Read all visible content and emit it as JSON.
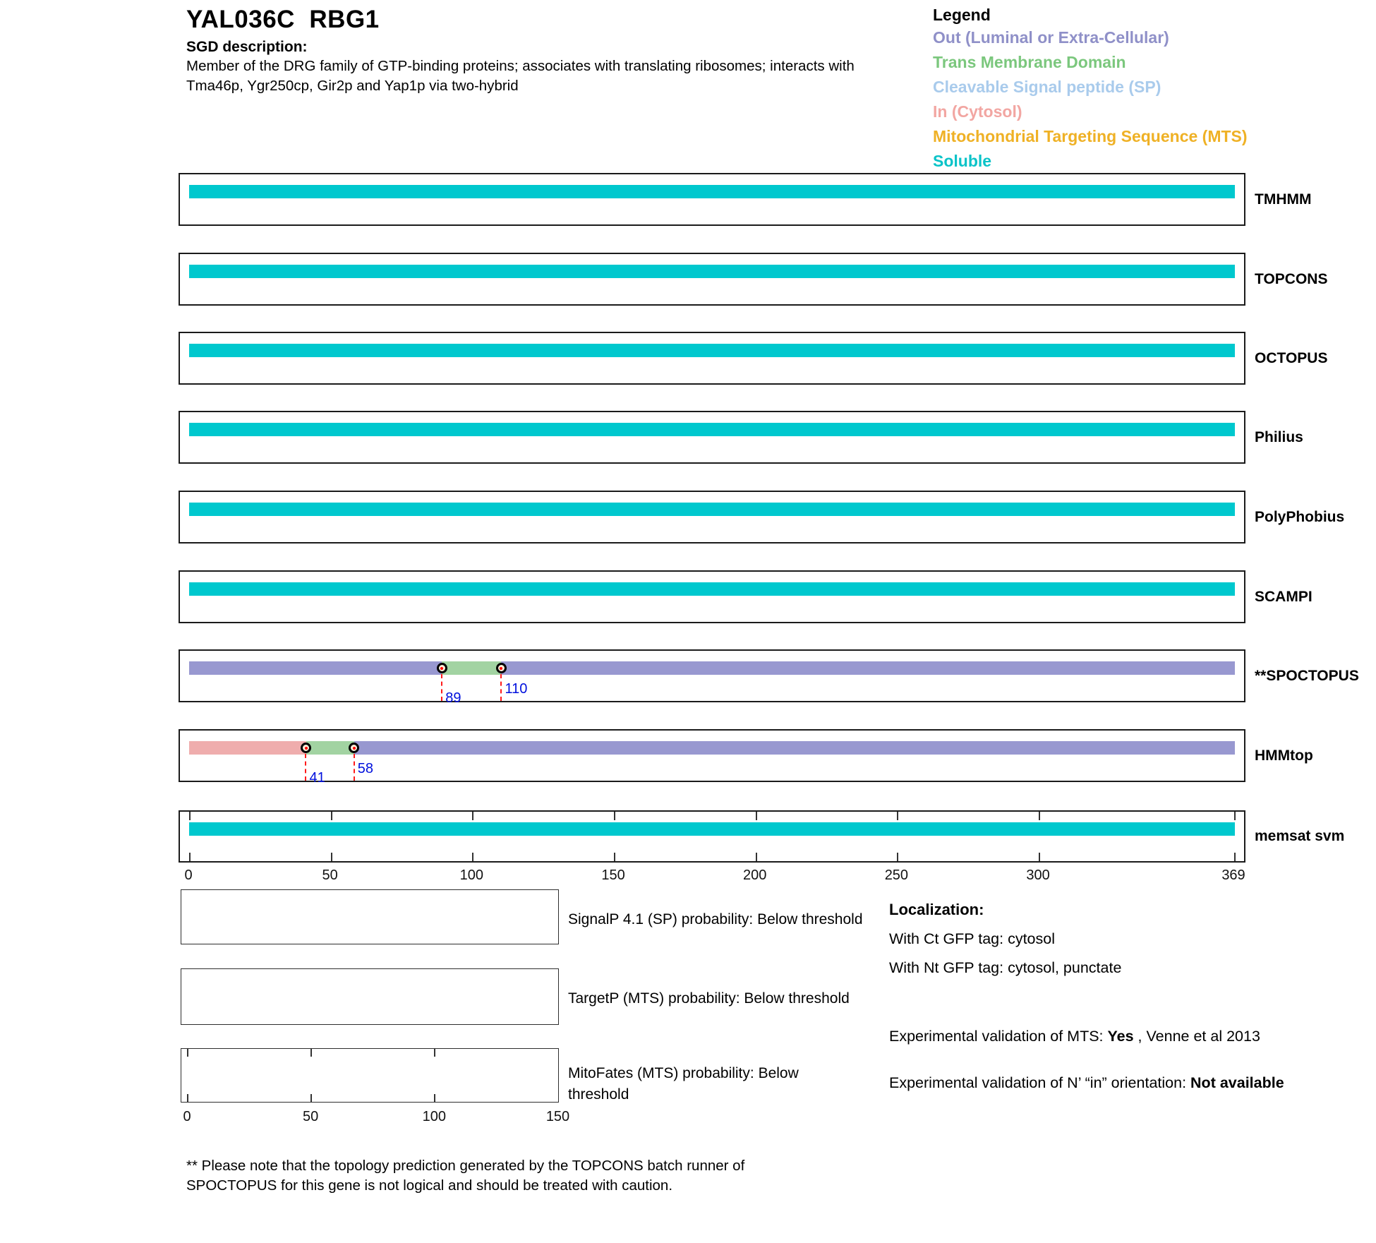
{
  "page": {
    "title": "YAL036C  RBG1",
    "sgd_heading": "SGD description:",
    "sgd_description_line1": "Member of the DRG family of GTP-binding proteins; associates with translating ribosomes; interacts with",
    "sgd_description_line2": "Tma46p, Ygr250cp, Gir2p and Yap1p via two-hybrid"
  },
  "legend": {
    "title": "Legend",
    "items": [
      {
        "label": "Out (Luminal or Extra-Cellular)",
        "color": "#8F90C8"
      },
      {
        "label": "Trans Membrane Domain",
        "color": "#7BC77D"
      },
      {
        "label": "Cleavable Signal peptide (SP)",
        "color": "#A9CBEC"
      },
      {
        "label": "In (Cytosol)",
        "color": "#F2A6A2"
      },
      {
        "label": "Mitochondrial Targeting Sequence (MTS)",
        "color": "#EFB125"
      },
      {
        "label": "Soluble",
        "color": "#0AC3C8"
      }
    ]
  },
  "chart_data": {
    "type": "protein-topology-tracks",
    "sequence_length": 369,
    "axis_ticks": [
      0,
      50,
      100,
      150,
      200,
      250,
      300,
      369
    ],
    "colors": {
      "soluble": "#00C8CE",
      "out": "#9898D0",
      "tm": "#A2D3A2",
      "in": "#EFADAD"
    },
    "tracks": [
      {
        "label": "TMHMM",
        "segments": [
          {
            "type": "soluble",
            "start": 0,
            "end": 369
          }
        ],
        "markers": []
      },
      {
        "label": "TOPCONS",
        "segments": [
          {
            "type": "soluble",
            "start": 0,
            "end": 369
          }
        ],
        "markers": []
      },
      {
        "label": "OCTOPUS",
        "segments": [
          {
            "type": "soluble",
            "start": 0,
            "end": 369
          }
        ],
        "markers": []
      },
      {
        "label": "Philius",
        "segments": [
          {
            "type": "soluble",
            "start": 0,
            "end": 369
          }
        ],
        "markers": []
      },
      {
        "label": "PolyPhobius",
        "segments": [
          {
            "type": "soluble",
            "start": 0,
            "end": 369
          }
        ],
        "markers": []
      },
      {
        "label": "SCAMPI",
        "segments": [
          {
            "type": "soluble",
            "start": 0,
            "end": 369
          }
        ],
        "markers": []
      },
      {
        "label": "**SPOCTOPUS",
        "segments": [
          {
            "type": "out",
            "start": 0,
            "end": 89
          },
          {
            "type": "tm",
            "start": 89,
            "end": 110
          },
          {
            "type": "out",
            "start": 110,
            "end": 369
          }
        ],
        "markers": [
          {
            "pos": 89,
            "label": "89",
            "label_row": "lower"
          },
          {
            "pos": 110,
            "label": "110",
            "label_row": "upper"
          }
        ]
      },
      {
        "label": "HMMtop",
        "segments": [
          {
            "type": "in",
            "start": 0,
            "end": 41
          },
          {
            "type": "tm",
            "start": 41,
            "end": 58
          },
          {
            "type": "out",
            "start": 58,
            "end": 369
          }
        ],
        "markers": [
          {
            "pos": 41,
            "label": "41",
            "label_row": "lower"
          },
          {
            "pos": 58,
            "label": "58",
            "label_row": "upper"
          }
        ]
      },
      {
        "label": "memsat svm",
        "segments": [
          {
            "type": "soluble",
            "start": 0,
            "end": 369
          }
        ],
        "markers": [],
        "axis": true
      }
    ],
    "probability_plots": [
      {
        "label_lines": [
          "SignalP 4.1 (SP) probability: Below threshold"
        ],
        "axis": false
      },
      {
        "label_lines": [
          "TargetP (MTS) probability: Below threshold"
        ],
        "axis": false
      },
      {
        "label_lines": [
          "MitoFates (MTS) probability: Below",
          "threshold"
        ],
        "axis": true,
        "axis_ticks": [
          0,
          50,
          100,
          150
        ],
        "axis_range": [
          0,
          150
        ]
      }
    ]
  },
  "localization": {
    "heading": "Localization:",
    "ct_line": "With Ct GFP tag: cytosol",
    "nt_line": "With Nt GFP tag: cytosol, punctate",
    "mts_prefix": "Experimental validation of MTS: ",
    "mts_value": "Yes",
    "mts_suffix": " , Venne et al 2013",
    "orientation_prefix": "Experimental validation of N’ “in” orientation: ",
    "orientation_value": "Not available"
  },
  "footnote_line1": "** Please note that the topology prediction generated by the TOPCONS batch runner of",
  "footnote_line2": "SPOCTOPUS for this gene is not logical and should be treated with caution."
}
